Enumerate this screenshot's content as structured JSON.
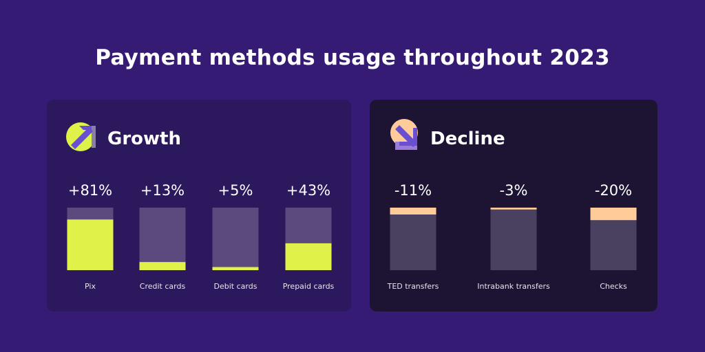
{
  "title": "Payment methods usage throughout 2023",
  "colors": {
    "background": "#351b73",
    "growth_fill": "#dff24a",
    "growth_track": "#5a4a7e",
    "decline_fill": "#ffcc99",
    "decline_track": "#4a405f"
  },
  "chart_data": [
    {
      "type": "bar",
      "title": "Growth",
      "icon": "arrow-up-right-icon",
      "categories": [
        "Pix",
        "Credit cards",
        "Debit cards",
        "Prepaid cards"
      ],
      "values": [
        81,
        13,
        5,
        43
      ],
      "labels": [
        "+81%",
        "+13%",
        "+5%",
        "+43%"
      ],
      "ylim": [
        0,
        100
      ]
    },
    {
      "type": "bar",
      "title": "Decline",
      "icon": "arrow-down-right-icon",
      "categories": [
        "TED transfers",
        "Intrabank transfers",
        "Checks"
      ],
      "values": [
        -11,
        -3,
        -20
      ],
      "labels": [
        "-11%",
        "-3%",
        "-20%"
      ],
      "ylim": [
        0,
        100
      ]
    }
  ]
}
